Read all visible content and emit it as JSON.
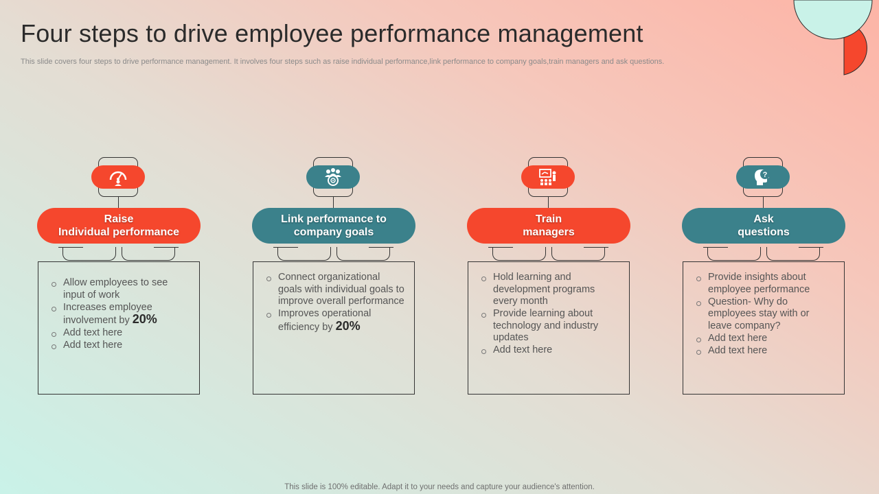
{
  "title": "Four steps to drive employee performance management",
  "subtitle": "This slide covers four steps to drive performance management. It involves four steps such as raise individual performance,link performance to company goals,train managers and ask questions.",
  "footer": "This slide is 100% editable. Adapt it to your needs and capture your audience's attention.",
  "colors": {
    "orange": "#f5472d",
    "teal": "#3b818b",
    "mint": "#c9f2e8"
  },
  "steps": [
    {
      "heading": "Raise\nIndividual performance",
      "icon": "performance-gauge-icon",
      "bullets": [
        {
          "text": "Allow employees to see input of work"
        },
        {
          "text": "Increases employee involvement by ",
          "highlight": "20%"
        },
        {
          "text": "Add text here"
        },
        {
          "text": "Add text here"
        }
      ]
    },
    {
      "heading": "Link performance to\ncompany goals",
      "icon": "team-target-icon",
      "bullets": [
        {
          "text": "Connect organizational goals with individual  goals to improve overall performance"
        },
        {
          "text": "Improves operational efficiency by ",
          "highlight": "20%"
        }
      ]
    },
    {
      "heading": "Train\nmanagers",
      "icon": "training-presentation-icon",
      "bullets": [
        {
          "text": "Hold learning and development programs every month"
        },
        {
          "text": "Provide learning about technology and industry updates"
        },
        {
          "text": "Add text here"
        }
      ]
    },
    {
      "heading": "Ask\nquestions",
      "icon": "question-head-icon",
      "bullets": [
        {
          "text": "Provide insights about employee performance"
        },
        {
          "text": "Question- Why do employees stay with or leave company?"
        },
        {
          "text": "Add text here"
        },
        {
          "text": "Add text here"
        }
      ]
    }
  ]
}
